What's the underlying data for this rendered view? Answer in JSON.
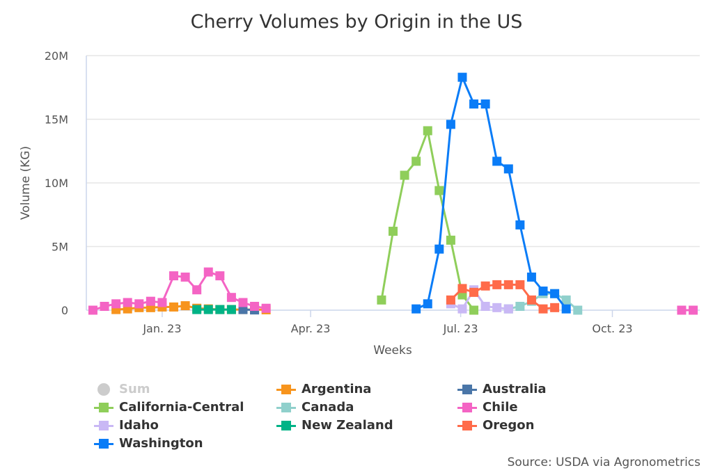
{
  "chart_data": {
    "type": "line",
    "title": "Cherry Volumes by Origin in the US",
    "xlabel": "Weeks",
    "ylabel": "Volume (KG)",
    "xlim": [
      "2022-11-16",
      "2023-11-23"
    ],
    "ylim": [
      0,
      20000000
    ],
    "x_ticks": [
      {
        "date": "2023-01-01",
        "label": "Jan. 23"
      },
      {
        "date": "2023-04-01",
        "label": "Apr. 23"
      },
      {
        "date": "2023-07-01",
        "label": "Jul. 23"
      },
      {
        "date": "2023-10-01",
        "label": "Oct. 23"
      }
    ],
    "y_ticks": [
      {
        "value": 0,
        "label": "0"
      },
      {
        "value": 5000000,
        "label": "5M"
      },
      {
        "value": 10000000,
        "label": "10M"
      },
      {
        "value": 15000000,
        "label": "15M"
      },
      {
        "value": 20000000,
        "label": "20M"
      }
    ],
    "grid": "horizontal",
    "legend_placement": "bottom",
    "series": [
      {
        "name": "Sum",
        "color": "#cccccc",
        "hidden": true,
        "points": []
      },
      {
        "name": "Argentina",
        "color": "#f7941d",
        "points": [
          [
            "2022-12-04",
            50000
          ],
          [
            "2022-12-11",
            100000
          ],
          [
            "2022-12-18",
            200000
          ],
          [
            "2022-12-25",
            200000
          ],
          [
            "2023-01-01",
            250000
          ],
          [
            "2023-01-08",
            250000
          ],
          [
            "2023-01-15",
            350000
          ],
          [
            "2023-01-22",
            150000
          ],
          [
            "2023-01-29",
            100000
          ],
          [
            "2023-02-05",
            50000
          ],
          [
            "2023-02-12",
            50000
          ],
          [
            "2023-02-19",
            50000
          ],
          [
            "2023-02-26",
            50000
          ],
          [
            "2023-03-05",
            30000
          ]
        ]
      },
      {
        "name": "Australia",
        "color": "#4a76a8",
        "points": [
          [
            "2023-02-19",
            50000
          ],
          [
            "2023-02-26",
            20000
          ]
        ]
      },
      {
        "name": "California-Central",
        "color": "#8fce5a",
        "points": [
          [
            "2023-05-14",
            800000
          ],
          [
            "2023-05-21",
            6200000
          ],
          [
            "2023-05-28",
            10600000
          ],
          [
            "2023-06-04",
            11700000
          ],
          [
            "2023-06-11",
            14100000
          ],
          [
            "2023-06-18",
            9400000
          ],
          [
            "2023-06-25",
            5500000
          ],
          [
            "2023-07-02",
            1200000
          ],
          [
            "2023-07-09",
            0
          ]
        ]
      },
      {
        "name": "Canada",
        "color": "#90d0cc",
        "points": [
          [
            "2023-07-30",
            100000
          ],
          [
            "2023-08-06",
            300000
          ],
          [
            "2023-08-13",
            700000
          ],
          [
            "2023-08-20",
            1300000
          ],
          [
            "2023-08-27",
            1300000
          ],
          [
            "2023-09-03",
            800000
          ],
          [
            "2023-09-10",
            0
          ]
        ]
      },
      {
        "name": "Chile",
        "color": "#f464c4",
        "points": [
          [
            "2022-11-20",
            0
          ],
          [
            "2022-11-27",
            300000
          ],
          [
            "2022-12-04",
            500000
          ],
          [
            "2022-12-11",
            600000
          ],
          [
            "2022-12-18",
            500000
          ],
          [
            "2022-12-25",
            700000
          ],
          [
            "2023-01-01",
            600000
          ],
          [
            "2023-01-08",
            2700000
          ],
          [
            "2023-01-15",
            2600000
          ],
          [
            "2023-01-22",
            1600000
          ],
          [
            "2023-01-29",
            3000000
          ],
          [
            "2023-02-05",
            2700000
          ],
          [
            "2023-02-12",
            1000000
          ],
          [
            "2023-02-19",
            600000
          ],
          [
            "2023-02-26",
            300000
          ],
          [
            "2023-03-05",
            150000
          ],
          null,
          [
            "2023-11-12",
            0
          ],
          [
            "2023-11-19",
            0
          ]
        ]
      },
      {
        "name": "Idaho",
        "color": "#c9b8f5",
        "points": [
          [
            "2023-06-25",
            500000
          ],
          [
            "2023-07-02",
            100000
          ],
          [
            "2023-07-09",
            1600000
          ],
          [
            "2023-07-16",
            300000
          ],
          [
            "2023-07-23",
            200000
          ],
          [
            "2023-07-30",
            100000
          ]
        ]
      },
      {
        "name": "New Zealand",
        "color": "#00b386",
        "points": [
          [
            "2023-01-22",
            50000
          ],
          [
            "2023-01-29",
            50000
          ],
          [
            "2023-02-05",
            50000
          ],
          [
            "2023-02-12",
            50000
          ]
        ]
      },
      {
        "name": "Oregon",
        "color": "#ff6b4a",
        "points": [
          [
            "2023-06-25",
            800000
          ],
          [
            "2023-07-02",
            1700000
          ],
          [
            "2023-07-09",
            1400000
          ],
          [
            "2023-07-16",
            1900000
          ],
          [
            "2023-07-23",
            2000000
          ],
          [
            "2023-07-30",
            2000000
          ],
          [
            "2023-08-06",
            2000000
          ],
          [
            "2023-08-13",
            800000
          ],
          [
            "2023-08-20",
            100000
          ],
          [
            "2023-08-27",
            200000
          ]
        ]
      },
      {
        "name": "Washington",
        "color": "#0a7cf7",
        "points": [
          [
            "2023-06-04",
            100000
          ],
          [
            "2023-06-11",
            500000
          ],
          [
            "2023-06-18",
            4800000
          ],
          [
            "2023-06-25",
            14600000
          ],
          [
            "2023-07-02",
            18300000
          ],
          [
            "2023-07-09",
            16200000
          ],
          [
            "2023-07-16",
            16200000
          ],
          [
            "2023-07-23",
            11700000
          ],
          [
            "2023-07-30",
            11100000
          ],
          [
            "2023-08-06",
            6700000
          ],
          [
            "2023-08-13",
            2600000
          ],
          [
            "2023-08-20",
            1500000
          ],
          [
            "2023-08-27",
            1300000
          ],
          [
            "2023-09-03",
            100000
          ]
        ]
      }
    ],
    "source": "Source: USDA via Agronometrics"
  }
}
